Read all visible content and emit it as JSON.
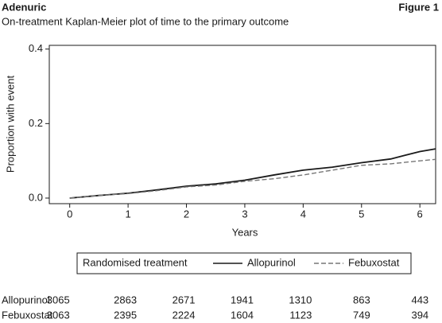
{
  "chart_data": {
    "type": "line",
    "header_left": "Adenuric",
    "header_right": "Figure 1",
    "title": "On-treatment Kaplan-Meier plot of time to the primary outcome",
    "xlabel": "Years",
    "ylabel": "Proportion with event",
    "x": [
      0,
      0.5,
      1,
      1.5,
      2,
      2.5,
      3,
      3.5,
      4,
      4.5,
      5,
      5.5,
      6,
      6.27
    ],
    "series": [
      {
        "name": "Allopurinol",
        "color": "#1a1a1a",
        "line_style": "solid",
        "values": [
          0,
          0.007,
          0.013,
          0.022,
          0.032,
          0.038,
          0.048,
          0.062,
          0.075,
          0.083,
          0.095,
          0.105,
          0.125,
          0.132
        ]
      },
      {
        "name": "Febuxostat",
        "color": "#777777",
        "line_style": "dashed",
        "values": [
          0,
          0.007,
          0.012,
          0.02,
          0.03,
          0.035,
          0.045,
          0.052,
          0.062,
          0.075,
          0.088,
          0.092,
          0.1,
          0.104
        ]
      }
    ],
    "xlim": [
      -0.35,
      6.27
    ],
    "ylim": [
      -0.015,
      0.41
    ],
    "xticks": [
      0,
      1,
      2,
      3,
      4,
      5,
      6
    ],
    "yticks": [
      {
        "value": 0,
        "label": "0.0"
      },
      {
        "value": 0.2,
        "label": "0.2"
      },
      {
        "value": 0.4,
        "label": "0.4"
      }
    ],
    "legend_title": "Randomised treatment",
    "risk_table": {
      "rows": [
        {
          "name": "Allopurinol",
          "color": "#1a1a1a",
          "values": [
            3065,
            2863,
            2671,
            1941,
            1310,
            863,
            443
          ]
        },
        {
          "name": "Febuxostat",
          "color": "#666666",
          "values": [
            3063,
            2395,
            2224,
            1604,
            1123,
            749,
            394
          ]
        }
      ]
    }
  }
}
